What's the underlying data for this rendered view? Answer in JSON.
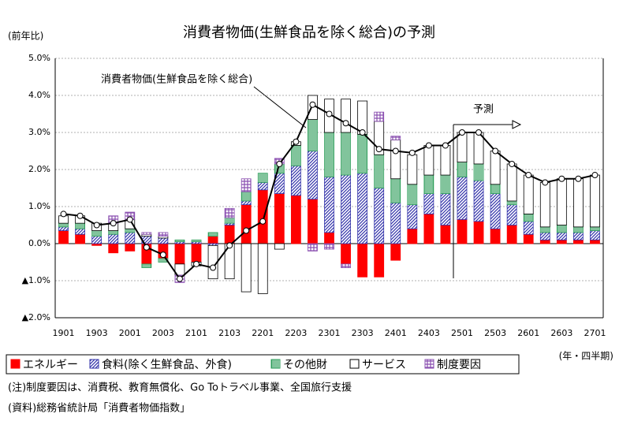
{
  "chart_data": {
    "type": "bar",
    "title": "消費者物価(生鮮食品を除く総合)の予測",
    "y_axis_label": "(前年比)",
    "x_axis_label": "(年・四半期)",
    "annotations": [
      "消費者物価(生鮮食品を除く総合)",
      "予測"
    ],
    "notes": [
      "(注)制度要因は、消費税、教育無償化、Go Toトラベル事業、全国旅行支援",
      "(資料)総務省統計局「消費者物価指数」"
    ],
    "categories": [
      "1901",
      null,
      "1903",
      null,
      "2001",
      null,
      "2003",
      null,
      "2101",
      null,
      "2103",
      null,
      "2201",
      null,
      "2203",
      null,
      "2301",
      null,
      "2303",
      null,
      "2401",
      null,
      "2403",
      null,
      "2501",
      null,
      "2503",
      null,
      "2601",
      null,
      "2603",
      null,
      "2701"
    ],
    "ylim": [
      -2.0,
      5.0
    ],
    "yticks": [
      {
        "value": -2.0,
        "label": "▲2.0%"
      },
      {
        "value": -1.0,
        "label": "▲1.0%"
      },
      {
        "value": 0.0,
        "label": "0.0%"
      },
      {
        "value": 1.0,
        "label": "1.0%"
      },
      {
        "value": 2.0,
        "label": "2.0%"
      },
      {
        "value": 3.0,
        "label": "3.0%"
      },
      {
        "value": 4.0,
        "label": "4.0%"
      },
      {
        "value": 5.0,
        "label": "5.0%"
      }
    ],
    "grid": true,
    "series": [
      {
        "name": "エネルギー",
        "color": "#ff0000",
        "pattern": "solid",
        "values": [
          0.35,
          0.25,
          -0.05,
          -0.25,
          -0.2,
          -0.55,
          -0.4,
          -0.55,
          -0.5,
          0.2,
          0.5,
          1.05,
          1.45,
          1.35,
          1.3,
          1.2,
          0.3,
          -0.55,
          -0.9,
          -0.9,
          -0.45,
          0.4,
          0.8,
          0.5,
          0.65,
          0.6,
          0.4,
          0.5,
          0.25,
          0.1,
          0.1,
          0.1,
          0.1
        ]
      },
      {
        "name": "食料(除く生鮮食品、外食)",
        "color": "#3333aa",
        "pattern": "diagonal",
        "values": [
          0.1,
          0.15,
          0.2,
          0.25,
          0.3,
          0.2,
          0.15,
          0.05,
          0.05,
          -0.05,
          0.05,
          0.1,
          0.2,
          0.55,
          0.8,
          1.3,
          1.5,
          1.85,
          1.9,
          1.5,
          1.1,
          0.65,
          0.55,
          0.85,
          1.15,
          1.1,
          0.95,
          0.55,
          0.35,
          0.2,
          0.2,
          0.2,
          0.25
        ]
      },
      {
        "name": "その他財",
        "color": "#2e9e5b",
        "pattern": "vertical",
        "values": [
          0.1,
          0.15,
          0.15,
          0.1,
          0.1,
          -0.1,
          -0.1,
          0.05,
          0.05,
          0.1,
          0.15,
          0.25,
          0.25,
          0.25,
          0.55,
          0.85,
          1.2,
          1.15,
          1.05,
          0.9,
          0.65,
          0.55,
          0.5,
          0.5,
          0.4,
          0.45,
          0.25,
          0.1,
          0.2,
          0.15,
          0.2,
          0.15,
          0.1
        ]
      },
      {
        "name": "サービス",
        "color": "#ffffff",
        "pattern": "solid",
        "values": [
          0.2,
          0.2,
          0.2,
          0.2,
          0.25,
          0.05,
          0.05,
          -0.3,
          -0.1,
          -0.9,
          -0.95,
          -1.3,
          -1.35,
          -0.15,
          0.1,
          0.65,
          0.9,
          0.9,
          0.9,
          0.9,
          1.05,
          0.8,
          0.8,
          0.8,
          0.8,
          0.85,
          0.9,
          1.0,
          1.05,
          1.2,
          1.25,
          1.3,
          1.4
        ]
      },
      {
        "name": "制度要因",
        "color": "#8a4fb0",
        "pattern": "grid",
        "values": [
          0,
          0,
          0,
          0.2,
          0.2,
          0.05,
          0.1,
          -0.2,
          0,
          0,
          0.25,
          0.35,
          0,
          0.15,
          0,
          -0.2,
          -0.15,
          -0.1,
          0,
          0.25,
          0.1,
          0,
          0,
          0,
          0,
          0,
          0,
          0,
          0,
          0,
          0,
          0,
          0
        ]
      }
    ],
    "line": {
      "name": "消費者物価(生鮮食品を除く総合)",
      "color": "#000000",
      "values": [
        0.8,
        0.75,
        0.5,
        0.55,
        0.65,
        -0.1,
        -0.3,
        -0.95,
        -0.55,
        -0.65,
        -0.05,
        0.35,
        0.6,
        2.15,
        2.75,
        3.75,
        3.5,
        3.25,
        3.0,
        2.55,
        2.5,
        2.45,
        2.65,
        2.65,
        3.0,
        3.0,
        2.5,
        2.15,
        1.85,
        1.65,
        1.75,
        1.75,
        1.85
      ]
    }
  }
}
